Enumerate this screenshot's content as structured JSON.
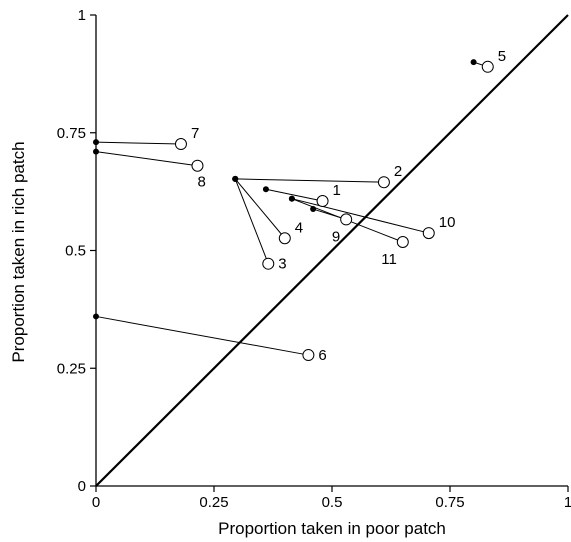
{
  "chart_data": {
    "type": "scatter",
    "title": "",
    "xlabel": "Proportion taken in poor patch",
    "ylabel": "Proportion taken in rich patch",
    "xlim": [
      0,
      1
    ],
    "ylim": [
      0,
      1
    ],
    "x_ticks": [
      {
        "value": 0,
        "label": "0"
      },
      {
        "value": 0.25,
        "label": "0.25"
      },
      {
        "value": 0.5,
        "label": "0.5"
      },
      {
        "value": 0.75,
        "label": "0.75"
      },
      {
        "value": 1,
        "label": "1"
      }
    ],
    "y_ticks": [
      {
        "value": 0,
        "label": "0"
      },
      {
        "value": 0.25,
        "label": "0.25"
      },
      {
        "value": 0.5,
        "label": "0.5"
      },
      {
        "value": 0.75,
        "label": "0.75"
      },
      {
        "value": 1,
        "label": "1"
      }
    ],
    "grid": false,
    "legend": "none",
    "reference_line": {
      "from": [
        0,
        0
      ],
      "to": [
        1,
        1
      ]
    },
    "pairs": [
      {
        "label": "1",
        "start": [
          0.36,
          0.63
        ],
        "end": [
          0.48,
          0.605
        ],
        "label_pos": "upper-right"
      },
      {
        "label": "2",
        "start": [
          0.295,
          0.652
        ],
        "end": [
          0.61,
          0.645
        ],
        "label_pos": "upper-right"
      },
      {
        "label": "3",
        "start": [
          0.295,
          0.652
        ],
        "end": [
          0.365,
          0.472
        ],
        "label_pos": "right"
      },
      {
        "label": "4",
        "start": [
          0.295,
          0.652
        ],
        "end": [
          0.4,
          0.526
        ],
        "label_pos": "upper-right"
      },
      {
        "label": "5",
        "start": [
          0.8,
          0.9
        ],
        "end": [
          0.83,
          0.89
        ],
        "label_pos": "upper-right"
      },
      {
        "label": "6",
        "start": [
          0,
          0.36
        ],
        "end": [
          0.45,
          0.278
        ],
        "label_pos": "right"
      },
      {
        "label": "7",
        "start": [
          0,
          0.73
        ],
        "end": [
          0.18,
          0.726
        ],
        "label_pos": "upper-right"
      },
      {
        "label": "8",
        "start": [
          0,
          0.71
        ],
        "end": [
          0.215,
          0.68
        ],
        "label_pos": "lower-right"
      },
      {
        "label": "9",
        "start": [
          0.46,
          0.588
        ],
        "end": [
          0.53,
          0.566
        ],
        "label_pos": "lower-left"
      },
      {
        "label": "10",
        "start": [
          0.415,
          0.61
        ],
        "end": [
          0.705,
          0.537
        ],
        "label_pos": "upper-right"
      },
      {
        "label": "11",
        "start": [
          0.415,
          0.61
        ],
        "end": [
          0.65,
          0.518
        ],
        "label_pos": "lower-left"
      }
    ],
    "colors": {
      "ink": "#000000",
      "open_marker_fill": "#ffffff"
    }
  }
}
